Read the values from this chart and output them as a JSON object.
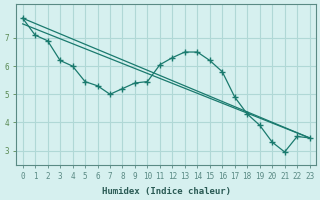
{
  "xlabel": "Humidex (Indice chaleur)",
  "ylabel": "",
  "background_color": "#d6f0ef",
  "grid_color": "#b0d8d6",
  "line_color": "#1a7a6e",
  "x_ticks": [
    0,
    1,
    2,
    3,
    4,
    5,
    6,
    7,
    8,
    9,
    10,
    11,
    12,
    13,
    14,
    15,
    16,
    17,
    18,
    19,
    20,
    21,
    22,
    23
  ],
  "y_ticks": [
    3,
    4,
    5,
    6,
    7
  ],
  "xlim": [
    -0.5,
    23.5
  ],
  "ylim": [
    2.5,
    8.2
  ],
  "line1": {
    "x": [
      0,
      1,
      2,
      3,
      4,
      5,
      6,
      7,
      8,
      9,
      10,
      11,
      12,
      13,
      14,
      15,
      16,
      17,
      18,
      19,
      20,
      21,
      22,
      23
    ],
    "y": [
      7.7,
      7.1,
      6.9,
      6.2,
      6.0,
      5.45,
      5.3,
      5.0,
      5.2,
      5.4,
      5.45,
      6.05,
      6.3,
      6.5,
      6.5,
      6.2,
      5.8,
      4.9,
      4.3,
      3.9,
      3.3,
      2.95,
      3.5,
      3.45
    ]
  },
  "line2": {
    "x": [
      0,
      23
    ],
    "y": [
      7.7,
      3.45
    ]
  },
  "line3": {
    "x": [
      0,
      23
    ],
    "y": [
      7.5,
      3.45
    ]
  }
}
